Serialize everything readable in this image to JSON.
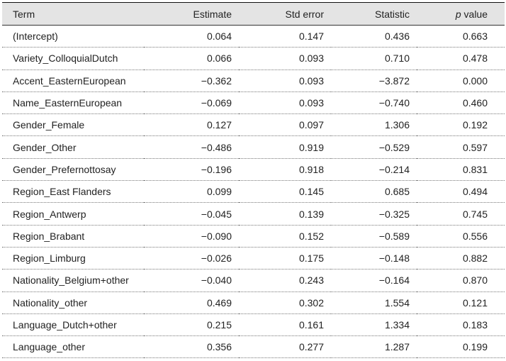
{
  "table": {
    "header": [
      "Term",
      "Estimate",
      "Std error",
      "Statistic",
      "p value"
    ],
    "rows": [
      [
        "(Intercept)",
        "0.064",
        "0.147",
        "0.436",
        "0.663"
      ],
      [
        "Variety_ColloquialDutch",
        "0.066",
        "0.093",
        "0.710",
        "0.478"
      ],
      [
        "Accent_EasternEuropean",
        "−0.362",
        "0.093",
        "−3.872",
        "0.000"
      ],
      [
        "Name_EasternEuropean",
        "−0.069",
        "0.093",
        "−0.740",
        "0.460"
      ],
      [
        "Gender_Female",
        "0.127",
        "0.097",
        "1.306",
        "0.192"
      ],
      [
        "Gender_Other",
        "−0.486",
        "0.919",
        "−0.529",
        "0.597"
      ],
      [
        "Gender_Prefernottosay",
        "−0.196",
        "0.918",
        "−0.214",
        "0.831"
      ],
      [
        "Region_East Flanders",
        "0.099",
        "0.145",
        "0.685",
        "0.494"
      ],
      [
        "Region_Antwerp",
        "−0.045",
        "0.139",
        "−0.325",
        "0.745"
      ],
      [
        "Region_Brabant",
        "−0.090",
        "0.152",
        "−0.589",
        "0.556"
      ],
      [
        "Region_Limburg",
        "−0.026",
        "0.175",
        "−0.148",
        "0.882"
      ],
      [
        "Nationality_Belgium+other",
        "−0.040",
        "0.243",
        "−0.164",
        "0.870"
      ],
      [
        "Nationality_other",
        "0.469",
        "0.302",
        "1.554",
        "0.121"
      ],
      [
        "Language_Dutch+other",
        "0.215",
        "0.161",
        "1.334",
        "0.183"
      ],
      [
        "Language_other",
        "0.356",
        "0.277",
        "1.287",
        "0.199"
      ]
    ]
  }
}
